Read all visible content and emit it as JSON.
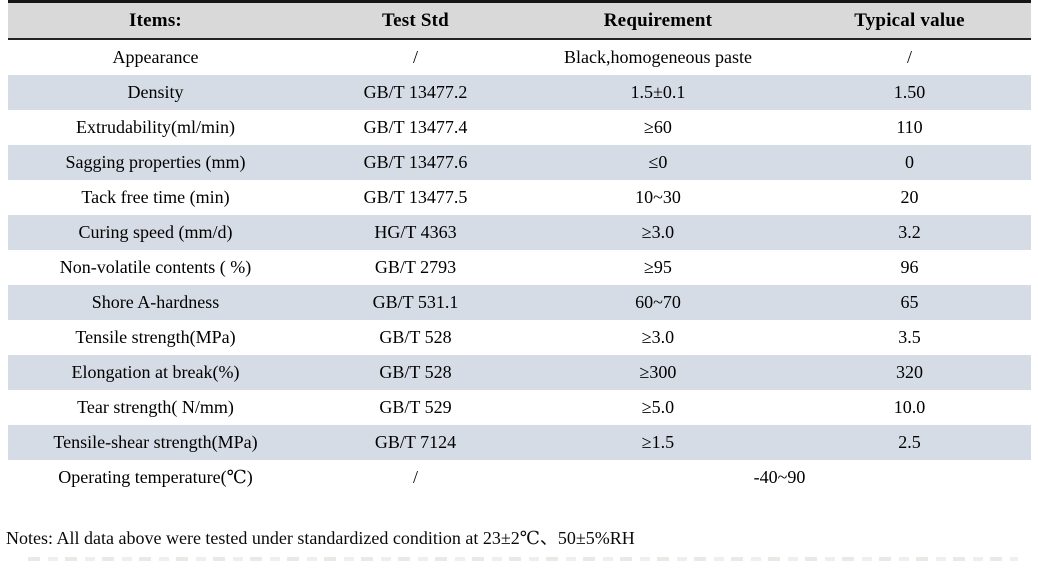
{
  "table": {
    "columns": [
      "Items:",
      "Test Std",
      "Requirement",
      "Typical value"
    ],
    "rows": [
      {
        "item": "Appearance",
        "std": "/",
        "req": "Black,homogeneous paste",
        "val": "/"
      },
      {
        "item": "Density",
        "std": "GB/T 13477.2",
        "req": "1.5±0.1",
        "val": "1.50"
      },
      {
        "item": "Extrudability(ml/min)",
        "std": "GB/T 13477.4",
        "req": "≥60",
        "val": "110"
      },
      {
        "item": "Sagging properties (mm)",
        "std": "GB/T 13477.6",
        "req": "≤0",
        "val": "0"
      },
      {
        "item": "Tack free time (min)",
        "std": "GB/T 13477.5",
        "req": "10~30",
        "val": "20"
      },
      {
        "item": "Curing speed (mm/d)",
        "std": "HG/T 4363",
        "req": "≥3.0",
        "val": "3.2"
      },
      {
        "item": "Non-volatile contents ( %)",
        "std": "GB/T 2793",
        "req": "≥95",
        "val": "96"
      },
      {
        "item": "Shore A-hardness",
        "std": "GB/T 531.1",
        "req": "60~70",
        "val": "65"
      },
      {
        "item": "Tensile strength(MPa)",
        "std": "GB/T 528",
        "req": "≥3.0",
        "val": "3.5"
      },
      {
        "item": "Elongation at break(%)",
        "std": "GB/T 528",
        "req": "≥300",
        "val": "320"
      },
      {
        "item": "Tear strength( N/mm)",
        "std": "GB/T 529",
        "req": "≥5.0",
        "val": "10.0"
      },
      {
        "item": "Tensile-shear strength(MPa)",
        "std": "GB/T 7124",
        "req": "≥1.5",
        "val": "2.5"
      },
      {
        "item": "Operating temperature(℃)",
        "std": "/",
        "req": "-40~90",
        "val": "",
        "merged": true
      }
    ]
  },
  "notes": "Notes: All data above were tested under standardized condition at 23±2℃、50±5%RH",
  "colors": {
    "header_bg": "#d9d9d9",
    "alt_row_bg": "#d6dce6",
    "border": "#161616",
    "text": "#000000",
    "page_bg": "#ffffff"
  }
}
